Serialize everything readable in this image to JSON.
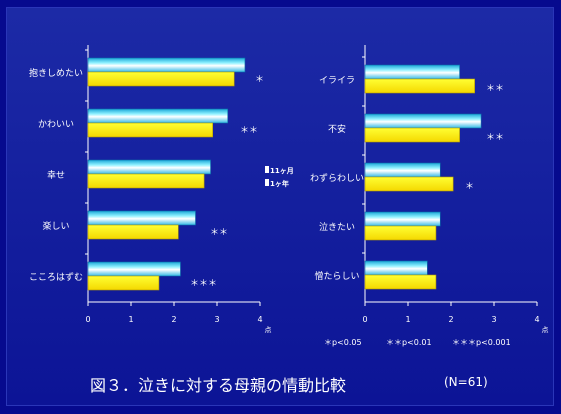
{
  "figure": {
    "caption": "図３．泣きに対する母親の情動比較",
    "sample_size": "(N=61)",
    "significance_notes": [
      "＊p<0.05",
      "＊＊p<0.01",
      "＊＊＊p<0.001"
    ]
  },
  "legend": [
    "11ヶ月",
    "1ヶ年"
  ],
  "colors": {
    "series_1": "#4ed2f2",
    "series_2": "#fff41a",
    "axis": "#ffffff",
    "background": "#0c1496"
  },
  "chart_data": [
    {
      "type": "bar",
      "orientation": "horizontal",
      "categories": [
        "抱きしめたい",
        "かわいい",
        "幸せ",
        "楽しい",
        "こころはずむ"
      ],
      "series": [
        {
          "name": "11ヶ月",
          "values": [
            3.65,
            3.25,
            2.85,
            2.5,
            2.15
          ]
        },
        {
          "name": "1ヶ年",
          "values": [
            3.4,
            2.9,
            2.7,
            2.1,
            1.65
          ]
        }
      ],
      "significance": [
        "＊",
        "＊＊",
        "",
        "＊＊",
        "＊＊＊"
      ],
      "xlim": [
        0,
        4
      ],
      "xticks": [
        "0",
        "1",
        "2",
        "3",
        "4"
      ],
      "xunit": "点"
    },
    {
      "type": "bar",
      "orientation": "horizontal",
      "categories": [
        "イライラ",
        "不安",
        "わずらわしい",
        "泣きたい",
        "憎たらしい"
      ],
      "series": [
        {
          "name": "11ヶ月",
          "values": [
            2.2,
            2.7,
            1.75,
            1.75,
            1.45
          ]
        },
        {
          "name": "1ヶ年",
          "values": [
            2.55,
            2.2,
            2.05,
            1.65,
            1.65
          ]
        }
      ],
      "significance": [
        "＊＊",
        "＊＊",
        "＊",
        "",
        ""
      ],
      "xlim": [
        0,
        4
      ],
      "xticks": [
        "0",
        "1",
        "2",
        "3",
        "4"
      ],
      "xunit": "点"
    }
  ]
}
